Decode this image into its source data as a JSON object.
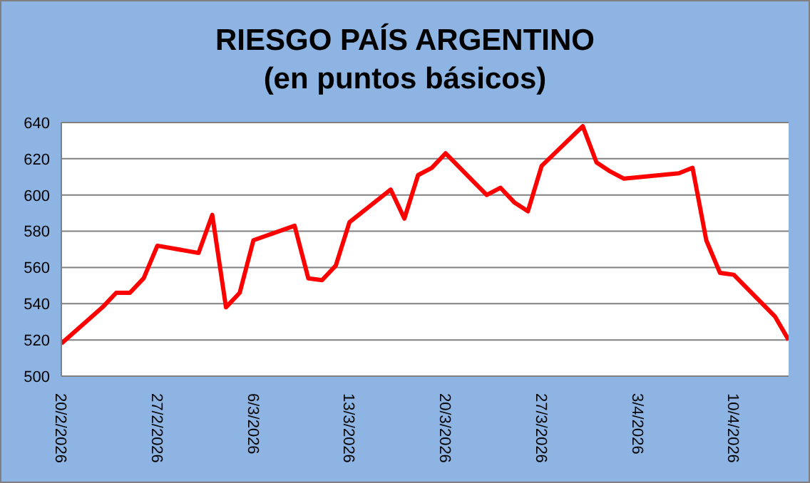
{
  "chart_data": {
    "type": "line",
    "title": "RIESGO PAÍS ARGENTINO",
    "subtitle": "(en puntos básicos)",
    "x": [
      "2026-02-20",
      "2026-02-23",
      "2026-02-24",
      "2026-02-25",
      "2026-02-26",
      "2026-02-27",
      "2026-03-02",
      "2026-03-03",
      "2026-03-04",
      "2026-03-05",
      "2026-03-06",
      "2026-03-09",
      "2026-03-10",
      "2026-03-11",
      "2026-03-12",
      "2026-03-13",
      "2026-03-16",
      "2026-03-17",
      "2026-03-18",
      "2026-03-19",
      "2026-03-20",
      "2026-03-23",
      "2026-03-24",
      "2026-03-25",
      "2026-03-26",
      "2026-03-27",
      "2026-03-30",
      "2026-03-31",
      "2026-04-01",
      "2026-04-02",
      "2026-04-06",
      "2026-04-07",
      "2026-04-08",
      "2026-04-09",
      "2026-04-10",
      "2026-04-13",
      "2026-04-14"
    ],
    "series": [
      {
        "color": "#ff0000",
        "values": [
          518,
          538,
          546,
          546,
          554,
          572,
          568,
          589,
          538,
          546,
          575,
          583,
          554,
          553,
          561,
          585,
          603,
          587,
          611,
          615,
          623,
          600,
          604,
          596,
          591,
          616,
          638,
          618,
          613,
          609,
          612,
          615,
          575,
          557,
          556,
          533,
          520
        ]
      }
    ],
    "xlim": [
      "2026-02-20",
      "2026-04-14"
    ],
    "xticks": [
      {
        "value": "2026-02-20",
        "label": "20/2/2026"
      },
      {
        "value": "2026-02-27",
        "label": "27/2/2026"
      },
      {
        "value": "2026-03-06",
        "label": "6/3/2026"
      },
      {
        "value": "2026-03-13",
        "label": "13/3/2026"
      },
      {
        "value": "2026-03-20",
        "label": "20/3/2026"
      },
      {
        "value": "2026-03-27",
        "label": "27/3/2026"
      },
      {
        "value": "2026-04-03",
        "label": "3/4/2026"
      },
      {
        "value": "2026-04-10",
        "label": "10/4/2026"
      }
    ],
    "ylim": [
      500,
      640
    ],
    "yticks": [
      500,
      520,
      540,
      560,
      580,
      600,
      620,
      640
    ],
    "grid": "y",
    "legend": false,
    "marker": "none",
    "line_style": "solid"
  }
}
